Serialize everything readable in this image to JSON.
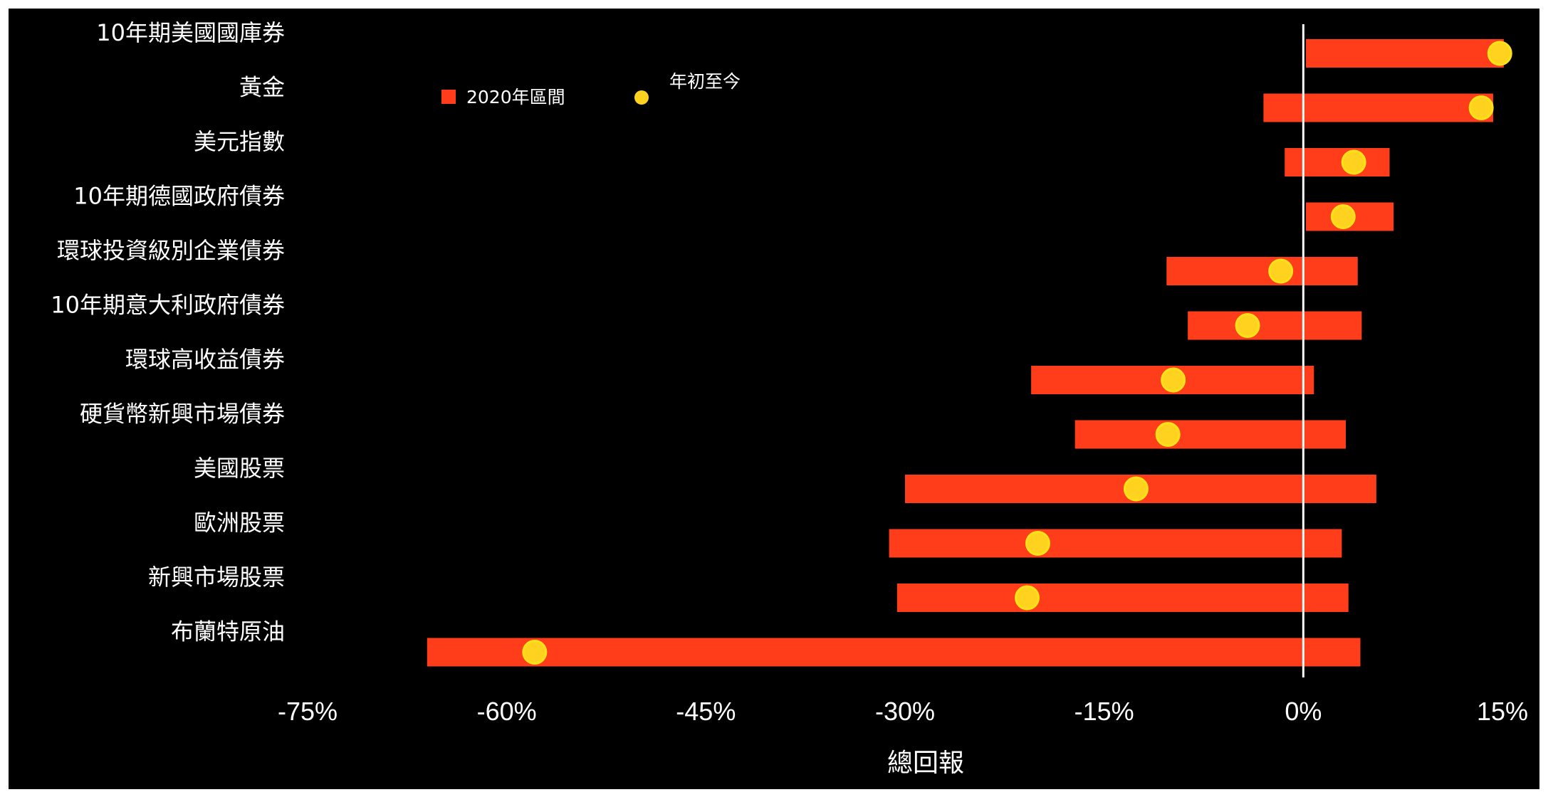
{
  "chart_data": {
    "type": "range-bar",
    "xlabel": "總回報",
    "xlim": [
      -75,
      15
    ],
    "xticks": [
      -75,
      -60,
      -45,
      -30,
      -15,
      0,
      15
    ],
    "xtick_labels": [
      "-75%",
      "-60%",
      "-45%",
      "-30%",
      "-15%",
      "0%",
      "15%"
    ],
    "legend": {
      "placement": "top-left",
      "items": [
        {
          "name": "2020年區間",
          "color": "#ff3d1a",
          "marker": "square"
        },
        {
          "name": "年初至今",
          "color": "#ffd21f",
          "marker": "circle"
        }
      ]
    },
    "zero_line": true,
    "colors": {
      "bar": "#ff3d1a",
      "dot": "#ffd21f",
      "dot_ring": "#f7e318",
      "background": "#000000",
      "zero_line": "#ffffff"
    },
    "categories": [
      "10年期美國國庫券",
      "黃金",
      "美元指數",
      "10年期德國政府債券",
      "環球投資級別企業債券",
      "10年期意大利政府債券",
      "環球高收益債券",
      "硬貨幣新興市場債券",
      "美國股票",
      "歐洲股票",
      "新興市場股票",
      "布蘭特原油"
    ],
    "series": [
      {
        "name": "2020年區間",
        "ranges": [
          [
            0.2,
            15.1
          ],
          [
            -3.0,
            14.3
          ],
          [
            -1.4,
            6.5
          ],
          [
            0.2,
            6.8
          ],
          [
            -10.3,
            4.1
          ],
          [
            -8.7,
            4.4
          ],
          [
            -20.5,
            0.8
          ],
          [
            -17.2,
            3.2
          ],
          [
            -30.0,
            5.5
          ],
          [
            -31.2,
            2.9
          ],
          [
            -30.6,
            3.4
          ],
          [
            -66.0,
            4.3
          ]
        ]
      },
      {
        "name": "年初至今",
        "values": [
          14.8,
          13.4,
          3.8,
          3.0,
          -1.7,
          -4.2,
          -9.8,
          -10.2,
          -12.6,
          -20.0,
          -20.8,
          -57.9
        ]
      }
    ]
  }
}
